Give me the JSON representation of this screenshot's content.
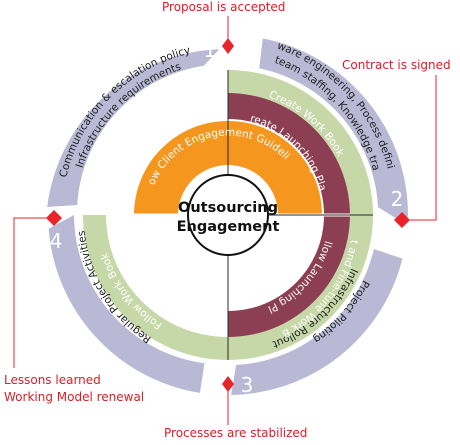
{
  "center": {
    "line1": "Outsourcing",
    "line2": "Engagement"
  },
  "milestones": {
    "proposal": "Proposal is accepted",
    "contract": "Contract is signed",
    "processes": "Processes are stabilized",
    "lessons": "Lessons learned",
    "renewal": "Working Model renewal"
  },
  "phases": {
    "p1": {
      "number": "1",
      "line1": "Communication & escalation policy",
      "line2": "Infrastructure requirements"
    },
    "p2": {
      "number": "2",
      "line1": "Software engineering, Process definition",
      "line2": "Core team staffing, Knowledge transfer"
    },
    "p3": {
      "number": "3",
      "line1": "Infrastructure Rollout",
      "line2": "Project Piloting"
    },
    "p4": {
      "number": "4",
      "line1": "Regular Project Activities"
    }
  },
  "rings": {
    "green_top": "Create Work Book",
    "maroon_top": "Create Launching Plan",
    "orange": "Follow Client Engagement Guidelines",
    "maroon_bottom": "Follow Launching Plan",
    "green_bottom": "Pilot and Fine-tune Work Book",
    "green_left": "Follow Work Book"
  },
  "colors": {
    "lavender": "#b9b9d6",
    "green": "#c6d7a8",
    "maroon": "#8c3f52",
    "orange": "#f5961f",
    "marker": "#e8232a"
  }
}
